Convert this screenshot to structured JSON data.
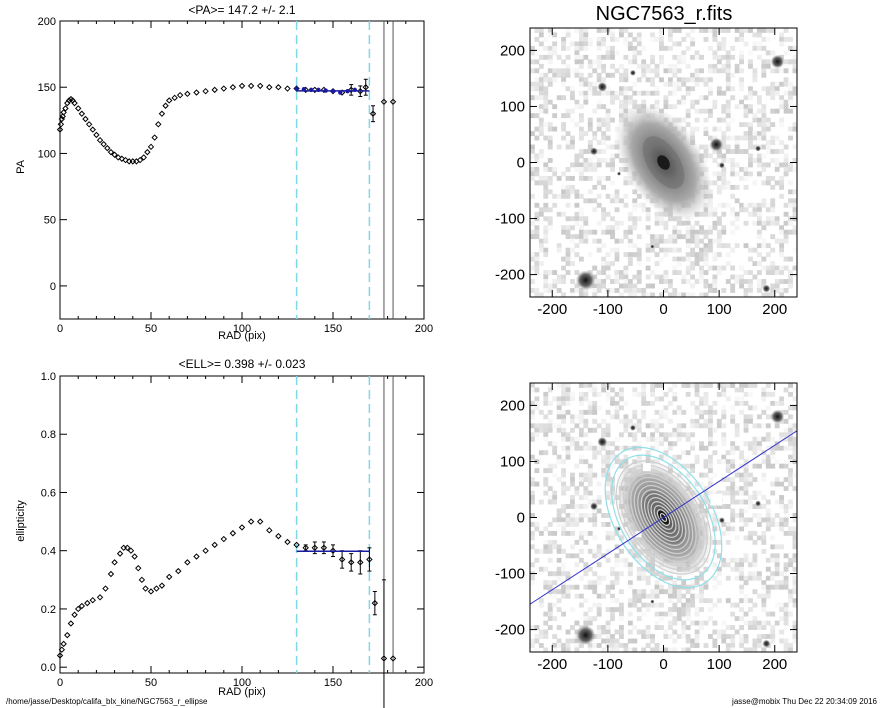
{
  "page": {
    "footer_left": "/home/jasse/Desktop/califa_blx_kine/NGC7563_r_ellipse",
    "footer_right": "jasse@mobix  Thu Dec 22 20:34:09 2016"
  },
  "colors": {
    "fit_line": "#1a1aa0",
    "dashed_marker": "#7fd8e8",
    "contour": "#cfcfcf",
    "outer_contour": "#8fe0ea",
    "axis_line": "#3333cc"
  },
  "chart_data": [
    {
      "type": "scatter",
      "title": "<PA>= 147.2 +/-   2.1",
      "xlabel": "RAD (pix)",
      "ylabel": "PA",
      "xlim": [
        0,
        200
      ],
      "ylim": [
        -25,
        200
      ],
      "xticks": [
        0,
        50,
        100,
        150,
        200
      ],
      "yticks": [
        0,
        50,
        100,
        150,
        200
      ],
      "vlines_dashed": [
        130,
        170
      ],
      "vlines_solid": [
        178,
        183
      ],
      "fit": {
        "x": [
          130,
          170
        ],
        "y": 147.2
      },
      "points": [
        [
          0,
          118
        ],
        [
          0.5,
          122
        ],
        [
          1,
          126
        ],
        [
          1.5,
          128
        ],
        [
          2,
          131
        ],
        [
          3,
          134
        ],
        [
          4,
          138
        ],
        [
          5,
          140
        ],
        [
          6,
          141
        ],
        [
          7,
          140
        ],
        [
          8,
          138
        ],
        [
          10,
          134
        ],
        [
          12,
          130
        ],
        [
          14,
          126
        ],
        [
          16,
          122
        ],
        [
          18,
          118
        ],
        [
          20,
          114
        ],
        [
          22,
          110
        ],
        [
          24,
          107
        ],
        [
          26,
          104
        ],
        [
          28,
          101
        ],
        [
          30,
          99
        ],
        [
          32,
          97
        ],
        [
          34,
          96
        ],
        [
          36,
          95
        ],
        [
          38,
          94
        ],
        [
          40,
          94
        ],
        [
          42,
          94
        ],
        [
          44,
          95
        ],
        [
          46,
          97
        ],
        [
          48,
          101
        ],
        [
          50,
          105
        ],
        [
          52,
          112
        ],
        [
          54,
          122
        ],
        [
          56,
          130
        ],
        [
          58,
          136
        ],
        [
          60,
          140
        ],
        [
          63,
          142
        ],
        [
          66,
          144
        ],
        [
          70,
          145
        ],
        [
          75,
          146
        ],
        [
          80,
          147
        ],
        [
          85,
          148
        ],
        [
          90,
          149
        ],
        [
          95,
          150
        ],
        [
          100,
          151
        ],
        [
          105,
          151
        ],
        [
          110,
          151
        ],
        [
          115,
          150
        ],
        [
          120,
          150
        ],
        [
          125,
          149
        ],
        [
          130,
          149
        ],
        [
          135,
          148
        ],
        [
          140,
          148
        ],
        [
          145,
          148
        ],
        [
          150,
          147
        ],
        [
          155,
          146
        ],
        [
          160,
          148
        ],
        [
          165,
          147
        ],
        [
          168,
          150
        ],
        [
          172,
          130
        ],
        [
          178,
          139
        ],
        [
          183,
          139
        ]
      ],
      "error_bars": [
        [
          160,
          148,
          4
        ],
        [
          165,
          147,
          4
        ],
        [
          168,
          150,
          6
        ],
        [
          172,
          130,
          6
        ]
      ],
      "fit_points": [
        [
          130,
          149
        ],
        [
          134,
          148.5
        ],
        [
          138,
          148
        ],
        [
          142,
          148
        ],
        [
          146,
          147.5
        ],
        [
          150,
          147
        ],
        [
          154,
          146
        ],
        [
          158,
          147
        ],
        [
          162,
          148
        ]
      ]
    },
    {
      "type": "scatter",
      "title": "<ELL>= 0.398 +/-  0.023",
      "xlabel": "RAD (pix)",
      "ylabel": "ellipticity",
      "xlim": [
        0,
        200
      ],
      "ylim": [
        -0.02,
        1.0
      ],
      "xticks": [
        0,
        50,
        100,
        150,
        200
      ],
      "yticks": [
        0.0,
        0.2,
        0.4,
        0.6,
        0.8,
        1.0
      ],
      "vlines_dashed": [
        130,
        170
      ],
      "vlines_solid": [
        178,
        183
      ],
      "fit": {
        "x": [
          130,
          170
        ],
        "y": 0.398
      },
      "points": [
        [
          0,
          0.04
        ],
        [
          1,
          0.06
        ],
        [
          2,
          0.08
        ],
        [
          4,
          0.11
        ],
        [
          6,
          0.15
        ],
        [
          8,
          0.18
        ],
        [
          10,
          0.2
        ],
        [
          12,
          0.21
        ],
        [
          15,
          0.22
        ],
        [
          18,
          0.23
        ],
        [
          22,
          0.24
        ],
        [
          25,
          0.27
        ],
        [
          28,
          0.32
        ],
        [
          30,
          0.36
        ],
        [
          33,
          0.39
        ],
        [
          35,
          0.41
        ],
        [
          37,
          0.41
        ],
        [
          39,
          0.4
        ],
        [
          41,
          0.38
        ],
        [
          43,
          0.34
        ],
        [
          45,
          0.3
        ],
        [
          47,
          0.27
        ],
        [
          50,
          0.26
        ],
        [
          53,
          0.27
        ],
        [
          56,
          0.28
        ],
        [
          60,
          0.31
        ],
        [
          65,
          0.33
        ],
        [
          70,
          0.36
        ],
        [
          75,
          0.38
        ],
        [
          80,
          0.4
        ],
        [
          85,
          0.42
        ],
        [
          90,
          0.44
        ],
        [
          95,
          0.46
        ],
        [
          100,
          0.48
        ],
        [
          105,
          0.5
        ],
        [
          110,
          0.5
        ],
        [
          115,
          0.47
        ],
        [
          120,
          0.45
        ],
        [
          125,
          0.43
        ],
        [
          130,
          0.42
        ],
        [
          135,
          0.41
        ],
        [
          140,
          0.41
        ],
        [
          145,
          0.41
        ],
        [
          150,
          0.4
        ],
        [
          155,
          0.37
        ],
        [
          160,
          0.36
        ],
        [
          165,
          0.36
        ],
        [
          170,
          0.37
        ],
        [
          173,
          0.22
        ],
        [
          178,
          0.03
        ],
        [
          183,
          0.03
        ]
      ],
      "error_bars": [
        [
          135,
          0.41,
          0.01
        ],
        [
          140,
          0.41,
          0.02
        ],
        [
          145,
          0.41,
          0.02
        ],
        [
          150,
          0.4,
          0.02
        ],
        [
          155,
          0.37,
          0.03
        ],
        [
          160,
          0.36,
          0.03
        ],
        [
          165,
          0.36,
          0.04
        ],
        [
          170,
          0.37,
          0.04
        ],
        [
          173,
          0.22,
          0.04
        ],
        [
          178,
          0.03,
          0.27
        ]
      ]
    },
    {
      "type": "heatmap",
      "title": "NGC7563_r.fits",
      "xlim": [
        -240,
        240
      ],
      "ylim": [
        -240,
        240
      ],
      "xticks": [
        -200,
        -100,
        0,
        100,
        200
      ],
      "yticks": [
        -200,
        -100,
        0,
        100,
        200
      ],
      "pa_deg": 147.2,
      "ellipticity": 0.398
    },
    {
      "type": "heatmap",
      "title": "",
      "xlim": [
        -240,
        240
      ],
      "ylim": [
        -240,
        240
      ],
      "xticks": [
        -200,
        -100,
        0,
        100,
        200
      ],
      "yticks": [
        -200,
        -100,
        0,
        100,
        200
      ],
      "pa_deg": 147.2,
      "ellipticity": 0.398
    }
  ]
}
